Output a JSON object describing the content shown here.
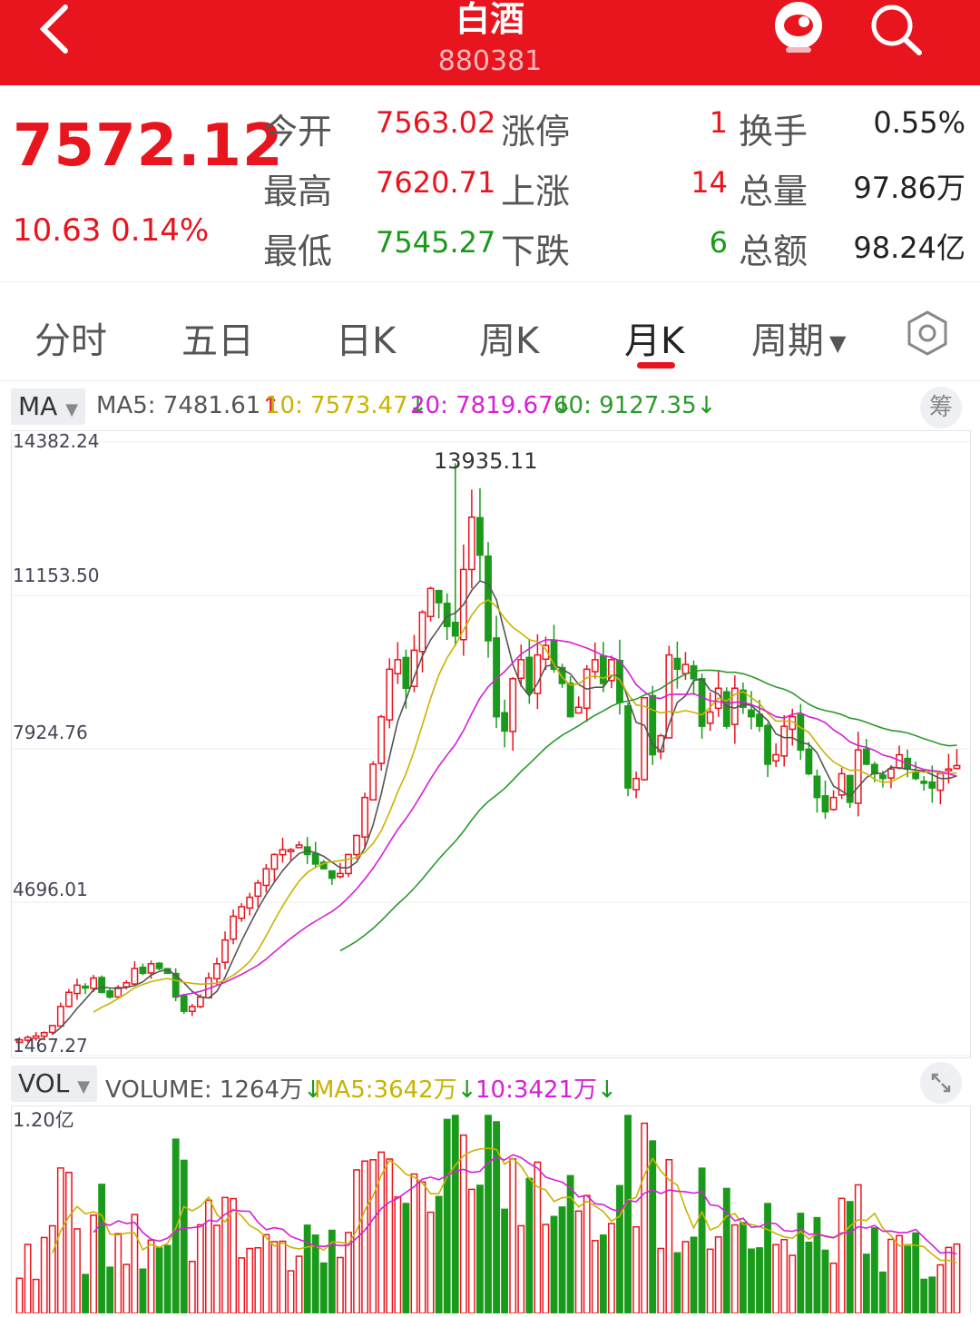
{
  "header": {
    "title": "白酒",
    "code": "880381",
    "back_icon": "chevron-left-icon",
    "assistant_icon": "robot-icon",
    "search_icon": "search-icon"
  },
  "quote": {
    "price": "7572.12",
    "change": "10.63",
    "change_pct": "0.14%",
    "rows": [
      {
        "label1": "今开",
        "value1": "7563.02",
        "label2": "涨停",
        "count": "1",
        "label3": "换手",
        "value3": "0.55%"
      },
      {
        "label1": "最高",
        "value1": "7620.71",
        "label2": "上涨",
        "count": "14",
        "label3": "总量",
        "value3": "97.86万"
      },
      {
        "label1": "最低",
        "value1": "7545.27",
        "label2": "下跌",
        "count": "6",
        "label3": "总额",
        "value3": "98.24亿"
      }
    ]
  },
  "tabs": {
    "items": [
      "分时",
      "五日",
      "日K",
      "周K",
      "月K",
      "周期"
    ],
    "active": "月K",
    "settings_icon": "hexagon-gear-icon"
  },
  "ma": {
    "selector": "MA",
    "ma5": "MA5: 7481.61",
    "ma10": "10: 7573.47",
    "ma20": "20: 7819.67",
    "ma60": "60: 9127.35",
    "chou": "筹"
  },
  "vol": {
    "selector": "VOL",
    "volume": "VOLUME: 1264万",
    "ma5": "MA5:3642万",
    "ma10": "10:3421万",
    "y_top": "1.20亿"
  },
  "colors": {
    "up": "#e8141e",
    "down": "#1a9a1a",
    "ma5": "#555555",
    "ma10": "#c8b400",
    "ma20": "#d61fd6",
    "ma60": "#2a9a2a"
  },
  "chart_data": {
    "type": "candlestick",
    "y_ticks": [
      "14382.24",
      "11153.50",
      "7924.76",
      "4696.01",
      "1467.27"
    ],
    "ylim": [
      1467.27,
      14382.24
    ],
    "high_marker": "13935.11",
    "closes": [
      1800,
      1850,
      1880,
      1950,
      2100,
      2500,
      2800,
      2950,
      2900,
      3100,
      2800,
      2700,
      2900,
      3000,
      3300,
      3200,
      3400,
      3300,
      3200,
      2700,
      2400,
      2500,
      2700,
      3100,
      3400,
      3900,
      4400,
      4600,
      4800,
      5100,
      5400,
      5700,
      5800,
      5800,
      5900,
      5700,
      5500,
      5400,
      5200,
      5300,
      5700,
      6100,
      6900,
      7600,
      8600,
      9600,
      9800,
      9200,
      10000,
      10800,
      11300,
      11000,
      10500,
      10300,
      11700,
      12800,
      12000,
      10200,
      8600,
      8300,
      9400,
      9800,
      9100,
      9900,
      10100,
      9600,
      9300,
      8600,
      8800,
      9600,
      9800,
      9300,
      9800,
      8900,
      7100,
      7300,
      9000,
      7800,
      8200,
      9900,
      9600,
      9700,
      9400,
      8400,
      8700,
      9200,
      8400,
      9200,
      8800,
      8600,
      8400,
      7600,
      7800,
      8400,
      8600,
      7900,
      7400,
      6900,
      6600,
      6900,
      7400,
      6800,
      7900,
      7600,
      7400,
      7300,
      7500,
      7800,
      7500,
      7300,
      7200,
      7100,
      7400,
      7500,
      7572
    ]
  }
}
